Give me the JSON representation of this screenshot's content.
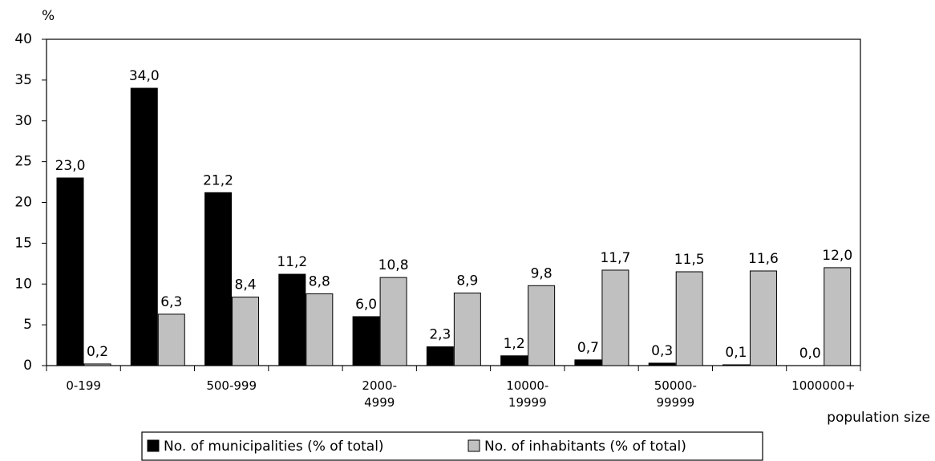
{
  "chart_data": {
    "type": "bar",
    "y_label": "%",
    "x_label": "population size",
    "categories": [
      "0-199",
      null,
      "500-999",
      null,
      "2000-\n4999",
      null,
      "10000-\n19999",
      null,
      "50000-\n99999",
      null,
      "1000000+"
    ],
    "series": [
      {
        "name": "No. of municipalities (% of total)",
        "color": "#000000",
        "values": [
          23.0,
          34.0,
          21.2,
          11.2,
          6.0,
          2.3,
          1.2,
          0.7,
          0.3,
          0.1,
          0.0
        ],
        "value_labels": [
          "23,0",
          "34,0",
          "21,2",
          "11,2",
          "6,0",
          "2,3",
          "1,2",
          "0,7",
          "0,3",
          "0,1",
          "0,0"
        ]
      },
      {
        "name": "No. of inhabitants (% of total)",
        "color": "#c0c0c0",
        "values": [
          0.2,
          6.3,
          8.4,
          8.8,
          10.8,
          8.9,
          9.8,
          11.7,
          11.5,
          11.6,
          12.0
        ],
        "value_labels": [
          "0,2",
          "6,3",
          "8,4",
          "8,8",
          "10,8",
          "8,9",
          "9,8",
          "11,7",
          "11,5",
          "11,6",
          "12,0"
        ]
      }
    ],
    "ylim": [
      0,
      40
    ],
    "yticks": [
      0,
      5,
      10,
      15,
      20,
      25,
      30,
      35,
      40
    ],
    "grid": false
  }
}
